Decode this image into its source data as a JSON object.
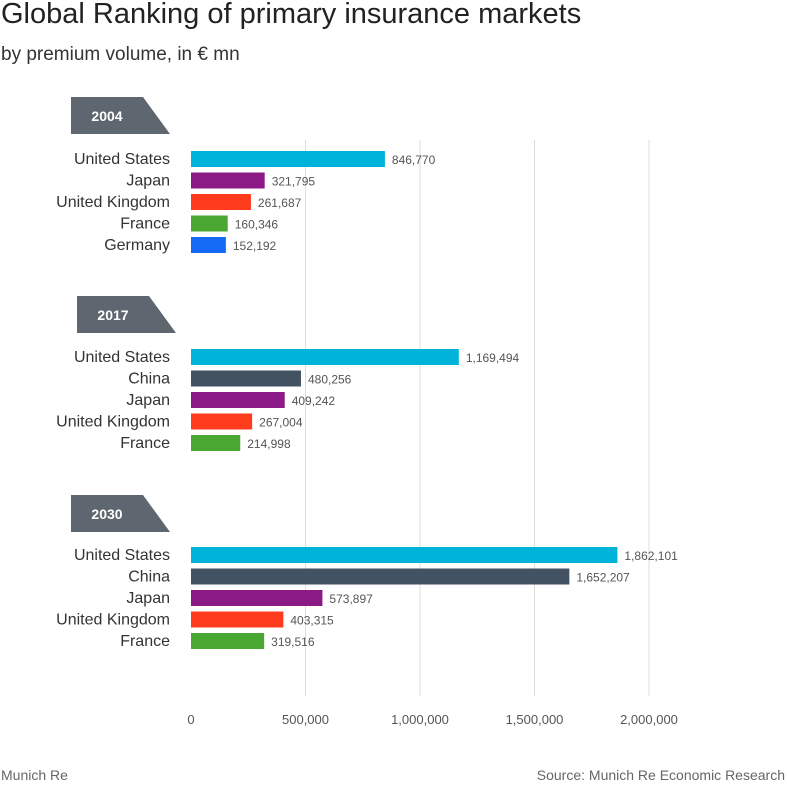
{
  "header": {
    "title": "Global Ranking of primary insurance markets",
    "subtitle": "by premium volume, in € mn"
  },
  "footer": {
    "left": "Munich Re",
    "right": "Source: Munich Re Economic Research"
  },
  "colors": {
    "United States": "#00b3d9",
    "Japan": "#8b1a86",
    "United Kingdom": "#ff3b1d",
    "France": "#4aa832",
    "Germany": "#1469f5",
    "China": "#435263",
    "badge": "#5e6770",
    "grid": "#dddddd"
  },
  "chart_data": {
    "type": "bar",
    "orientation": "horizontal",
    "title": "Global Ranking of primary insurance markets",
    "subtitle": "by premium volume, in € mn",
    "xlim": [
      0,
      2000000
    ],
    "x_ticks": [
      "0",
      "500,000",
      "1,000,000",
      "1,500,000",
      "2,000,000"
    ],
    "x_tick_values": [
      0,
      500000,
      1000000,
      1500000,
      2000000
    ],
    "grid": true,
    "groups": [
      {
        "label": "2004",
        "bars": [
          {
            "country": "United States",
            "value": 846770,
            "label": "846,770"
          },
          {
            "country": "Japan",
            "value": 321795,
            "label": "321,795"
          },
          {
            "country": "United Kingdom",
            "value": 261687,
            "label": "261,687"
          },
          {
            "country": "France",
            "value": 160346,
            "label": "160,346"
          },
          {
            "country": "Germany",
            "value": 152192,
            "label": "152,192"
          }
        ]
      },
      {
        "label": "2017",
        "bars": [
          {
            "country": "United States",
            "value": 1169494,
            "label": "1,169,494"
          },
          {
            "country": "China",
            "value": 480256,
            "label": "480,256"
          },
          {
            "country": "Japan",
            "value": 409242,
            "label": "409,242"
          },
          {
            "country": "United Kingdom",
            "value": 267004,
            "label": "267,004"
          },
          {
            "country": "France",
            "value": 214998,
            "label": "214,998"
          }
        ]
      },
      {
        "label": "2030",
        "bars": [
          {
            "country": "United States",
            "value": 1862101,
            "label": "1,862,101"
          },
          {
            "country": "China",
            "value": 1652207,
            "label": "1,652,207"
          },
          {
            "country": "Japan",
            "value": 573897,
            "label": "573,897"
          },
          {
            "country": "United Kingdom",
            "value": 403315,
            "label": "403,315"
          },
          {
            "country": "France",
            "value": 319516,
            "label": "319,516"
          }
        ]
      }
    ]
  }
}
